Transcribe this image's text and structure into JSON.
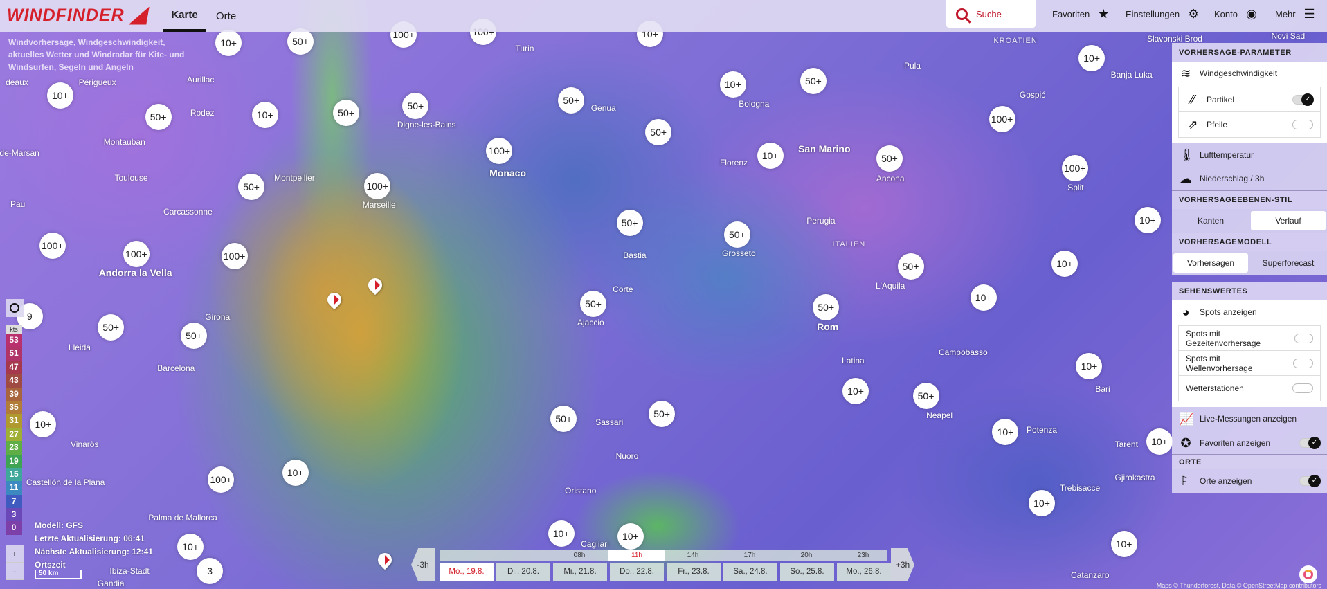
{
  "header": {
    "logo_text": "WINDFINDER",
    "tabs": [
      {
        "label": "Karte",
        "active": true
      },
      {
        "label": "Orte",
        "active": false
      }
    ],
    "search_label": "Suche",
    "favorites": "Favoriten",
    "settings": "Einstellungen",
    "account": "Konto",
    "more": "Mehr"
  },
  "description": [
    "Windvorhersage, Windgeschwindigkeit,",
    "aktuelles Wetter und Windradar für Kite- und",
    "Windsurfen, Segeln und Angeln"
  ],
  "map": {
    "markers": [
      "10+",
      "50+",
      "100+",
      "100+",
      "10+",
      "10+",
      "50+",
      "10+",
      "50+",
      "50+",
      "50+",
      "50+",
      "10+",
      "50+",
      "10+",
      "100+",
      "50+",
      "10+",
      "100+",
      "100+",
      "50+",
      "100+",
      "10+",
      "50+",
      "50+",
      "100+",
      "100+",
      "100+",
      "50+",
      "10+",
      "50+",
      "50+",
      "10+",
      "9",
      "50+",
      "50+",
      "10+",
      "10+",
      "50+",
      "50+",
      "50+",
      "10+",
      "10+",
      "10+",
      "10+",
      "100+",
      "10+",
      "10+",
      "10+",
      "10+",
      "3",
      "10+"
    ],
    "cities": [
      "Périgueux",
      "Aurillac",
      "deaux",
      "Turin",
      "Pula",
      "KROATIEN",
      "Slavonski Brod",
      "Novi Sad",
      "Banja Luka",
      "Gospić",
      "Rodez",
      "Genua",
      "Bologna",
      "Digne-les-Bains",
      "Montauban",
      "Monaco",
      "San Marino",
      "Florenz",
      "Ancona",
      "Split",
      "de-Marsan",
      "Toulouse",
      "Montpellier",
      "Marseille",
      "Pau",
      "Carcassonne",
      "Perugia",
      "Bastia",
      "Grosseto",
      "ITALIEN",
      "Andorra la Vella",
      "Corte",
      "L'Aquila",
      "Ajaccio",
      "Rom",
      "Girona",
      "Lleida",
      "Barcelona",
      "Campobasso",
      "Latina",
      "Bari",
      "Neapel",
      "Sassari",
      "Potenza",
      "Tarent",
      "Vinaròs",
      "Nuoro",
      "Castellón de la Plana",
      "Oristano",
      "Palma de Mallorca",
      "Gjirokastra",
      "Trebisacce",
      "Catanzaro",
      "Ibiza-Stadt",
      "Gandia",
      "Cagliari"
    ]
  },
  "panel": {
    "forecast_params": {
      "title": "VORHERSAGE-PARAMETER",
      "wind": "Windgeschwindigkeit",
      "particles": {
        "label": "Partikel",
        "on": true
      },
      "arrows": {
        "label": "Pfeile",
        "on": false
      },
      "temperature": "Lufttemperatur",
      "precip": "Niederschlag / 3h"
    },
    "layer_style": {
      "title": "VORHERSAGEEBENEN-STIL",
      "options": [
        "Kanten",
        "Verlauf"
      ],
      "selected": "Verlauf"
    },
    "model": {
      "title": "VORHERSAGEMODELL",
      "options": [
        "Vorhersagen",
        "Superforecast"
      ],
      "selected": "Vorhersagen"
    },
    "sights": {
      "title": "SEHENSWERTES",
      "spots": "Spots anzeigen",
      "tide": {
        "label": "Spots mit Gezeitenvorhersage",
        "on": false
      },
      "waves": {
        "label": "Spots mit Wellenvorhersage",
        "on": false
      },
      "stations": {
        "label": "Wetterstationen",
        "on": false
      },
      "live": "Live-Messungen anzeigen",
      "favorites": {
        "label": "Favoriten anzeigen",
        "on": true
      }
    },
    "places": {
      "title": "ORTE",
      "show": {
        "label": "Orte anzeigen",
        "on": true
      }
    }
  },
  "legend": {
    "unit": "kts",
    "values": [
      "53",
      "51",
      "47",
      "43",
      "39",
      "35",
      "31",
      "27",
      "23",
      "19",
      "15",
      "11",
      "7",
      "3",
      "0"
    ],
    "colors": [
      "#b8306e",
      "#b03468",
      "#a6384e",
      "#a04a44",
      "#a8643c",
      "#b07c38",
      "#b09a30",
      "#9fae35",
      "#5fae45",
      "#3ea352",
      "#3fa89a",
      "#3c88c0",
      "#3f5bbf",
      "#6a48b8",
      "#7d3fa8"
    ]
  },
  "zoom": {
    "in": "+",
    "out": "-"
  },
  "model_info": {
    "model": "Modell: GFS",
    "last_update": "Letzte Aktualisierung: 06:41",
    "next_update": "Nächste Aktualisierung: 12:41",
    "timezone": "Ortszeit"
  },
  "scale": "50 km",
  "timeline": {
    "prev": "-3h",
    "next": "+3h",
    "hours": [
      "08h",
      "11h",
      "14h",
      "17h",
      "20h",
      "23h"
    ],
    "current_hour": "11h",
    "days": [
      "Mo., 19.8.",
      "Di., 20.8.",
      "Mi., 21.8.",
      "Do., 22.8.",
      "Fr., 23.8.",
      "Sa., 24.8.",
      "So., 25.8.",
      "Mo., 26.8."
    ],
    "current_day": "Mo., 19.8."
  },
  "attribution": "Maps © Thunderforest, Data © OpenStreetMap contributors"
}
